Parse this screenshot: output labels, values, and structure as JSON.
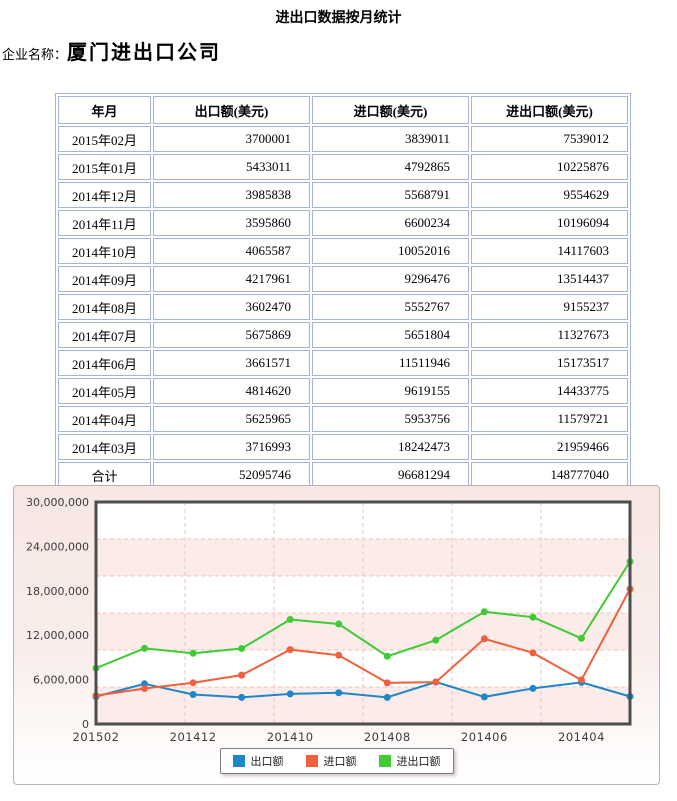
{
  "header": {
    "title": "进出口数据按月统计",
    "company_label": "企业名称：",
    "company_name": "厦门进出口公司"
  },
  "table": {
    "headers": [
      "年月",
      "出口额(美元)",
      "进口额(美元)",
      "进出口额(美元)"
    ],
    "rows": [
      [
        "2015年02月",
        "3700001",
        "3839011",
        "7539012"
      ],
      [
        "2015年01月",
        "5433011",
        "4792865",
        "10225876"
      ],
      [
        "2014年12月",
        "3985838",
        "5568791",
        "9554629"
      ],
      [
        "2014年11月",
        "3595860",
        "6600234",
        "10196094"
      ],
      [
        "2014年10月",
        "4065587",
        "10052016",
        "14117603"
      ],
      [
        "2014年09月",
        "4217961",
        "9296476",
        "13514437"
      ],
      [
        "2014年08月",
        "3602470",
        "5552767",
        "9155237"
      ],
      [
        "2014年07月",
        "5675869",
        "5651804",
        "11327673"
      ],
      [
        "2014年06月",
        "3661571",
        "11511946",
        "15173517"
      ],
      [
        "2014年05月",
        "4814620",
        "9619155",
        "14433775"
      ],
      [
        "2014年04月",
        "5625965",
        "5953756",
        "11579721"
      ],
      [
        "2014年03月",
        "3716993",
        "18242473",
        "21959466"
      ]
    ],
    "total_row": [
      "合计",
      "52095746",
      "96681294",
      "148777040"
    ]
  },
  "chart_data": {
    "type": "line",
    "x": [
      "201502",
      "201501",
      "201412",
      "201411",
      "201410",
      "201409",
      "201408",
      "201407",
      "201406",
      "201405",
      "201404",
      "201403"
    ],
    "x_tick_labels": [
      "201502",
      "201412",
      "201410",
      "201408",
      "201406",
      "201404"
    ],
    "series": [
      {
        "name": "出口额",
        "color": "#1e86c9",
        "values": [
          3700001,
          5433011,
          3985838,
          3595860,
          4065587,
          4217961,
          3602470,
          5675869,
          3661571,
          4814620,
          5625965,
          3716993
        ]
      },
      {
        "name": "进口额",
        "color": "#f0603a",
        "values": [
          3839011,
          4792865,
          5568791,
          6600234,
          10052016,
          9296476,
          5552767,
          5651804,
          11511946,
          9619155,
          5953756,
          18242473
        ]
      },
      {
        "name": "进出口额",
        "color": "#3ecb34",
        "values": [
          7539012,
          10225876,
          9554629,
          10196094,
          14117603,
          13514437,
          9155237,
          11327673,
          15173517,
          14433775,
          11579721,
          21959466
        ]
      }
    ],
    "ylim": [
      0,
      30000000
    ],
    "y_ticks": [
      0,
      6000000,
      12000000,
      18000000,
      24000000,
      30000000
    ],
    "y_tick_labels": [
      "0",
      "6,000,000",
      "12,000,000",
      "18,000,000",
      "24,000,000",
      "30,000,000"
    ],
    "legend_position": "bottom",
    "grid": "dashed",
    "colors": {
      "band_pink": "#fbecea",
      "band_white": "#ffffff",
      "gridline": "#f2c1ba",
      "frame": "#4d4d4d",
      "tick_text": "#3c3c3c"
    }
  }
}
